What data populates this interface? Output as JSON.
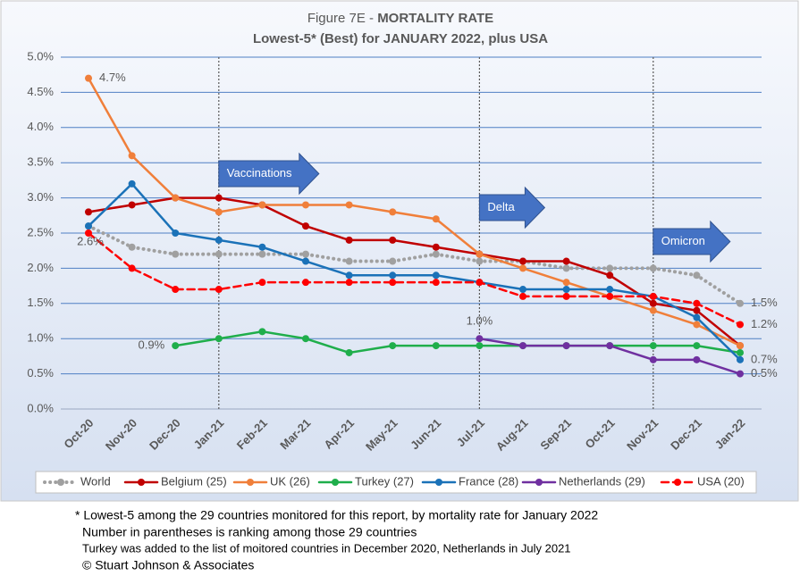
{
  "chart_data": {
    "type": "line",
    "title": {
      "figure": "Figure 7E  -",
      "heading": "MORTALITY RATE"
    },
    "subtitle": "Lowest-5* (Best) for JANUARY 2022, plus USA",
    "categories": [
      "Oct-20",
      "Nov-20",
      "Dec-20",
      "Jan-21",
      "Feb-21",
      "Mar-21",
      "Apr-21",
      "May-21",
      "Jun-21",
      "Jul-21",
      "Aug-21",
      "Sep-21",
      "Oct-21",
      "Nov-21",
      "Dec-21",
      "Jan-22"
    ],
    "ylim": [
      0,
      5
    ],
    "yticks": [
      {
        "value": 0,
        "label": "0.0%"
      },
      {
        "value": 0.5,
        "label": "0.5%"
      },
      {
        "value": 1,
        "label": "1.0%"
      },
      {
        "value": 1.5,
        "label": "1.5%"
      },
      {
        "value": 2,
        "label": "2.0%"
      },
      {
        "value": 2.5,
        "label": "2.5%"
      },
      {
        "value": 3,
        "label": "3.0%"
      },
      {
        "value": 3.5,
        "label": "3.5%"
      },
      {
        "value": 4,
        "label": "4.0%"
      },
      {
        "value": 4.5,
        "label": "4.5%"
      },
      {
        "value": 5,
        "label": "5.0%"
      }
    ],
    "grid": true,
    "series": [
      {
        "name": "World",
        "color": "#a0a0a0",
        "dash": "dotted",
        "values": [
          2.6,
          2.3,
          2.2,
          2.2,
          2.2,
          2.2,
          2.1,
          2.1,
          2.2,
          2.1,
          2.1,
          2.0,
          2.0,
          2.0,
          1.9,
          1.5
        ],
        "value_labels": [
          "2.6%",
          null,
          null,
          null,
          null,
          null,
          null,
          null,
          null,
          null,
          null,
          null,
          null,
          null,
          null,
          "1.5%"
        ]
      },
      {
        "name": "Belgium (25)",
        "color": "#c00000",
        "dash": "solid",
        "values": [
          2.8,
          2.9,
          3.0,
          3.0,
          2.9,
          2.6,
          2.4,
          2.4,
          2.3,
          2.2,
          2.1,
          2.1,
          1.9,
          1.5,
          1.4,
          0.9
        ]
      },
      {
        "name": "UK (26)",
        "color": "#f07f3a",
        "dash": "solid",
        "values": [
          4.7,
          3.6,
          3.0,
          2.8,
          2.9,
          2.9,
          2.9,
          2.8,
          2.7,
          2.2,
          2.0,
          1.8,
          1.6,
          1.4,
          1.2,
          0.9
        ],
        "value_labels": [
          "4.7%",
          null,
          null,
          null,
          null,
          null,
          null,
          null,
          null,
          null,
          null,
          null,
          null,
          null,
          null,
          null
        ]
      },
      {
        "name": "Turkey (27)",
        "color": "#1fae4b",
        "dash": "solid",
        "values": [
          null,
          null,
          0.9,
          1.0,
          1.1,
          1.0,
          0.8,
          0.9,
          0.9,
          0.9,
          0.9,
          0.9,
          0.9,
          0.9,
          0.9,
          0.8
        ],
        "value_labels": [
          null,
          null,
          "0.9%",
          null,
          null,
          null,
          null,
          null,
          null,
          null,
          null,
          null,
          null,
          null,
          null,
          null
        ]
      },
      {
        "name": "France (28)",
        "color": "#1b72b8",
        "dash": "solid",
        "values": [
          2.6,
          3.2,
          2.5,
          2.4,
          2.3,
          2.1,
          1.9,
          1.9,
          1.9,
          1.8,
          1.7,
          1.7,
          1.7,
          1.6,
          1.3,
          0.7
        ],
        "value_labels": [
          null,
          null,
          null,
          null,
          null,
          null,
          null,
          null,
          null,
          null,
          null,
          null,
          null,
          null,
          null,
          "0.7%"
        ]
      },
      {
        "name": "Netherlands (29)",
        "color": "#7030a0",
        "dash": "solid",
        "values": [
          null,
          null,
          null,
          null,
          null,
          null,
          null,
          null,
          null,
          1.0,
          0.9,
          0.9,
          0.9,
          0.7,
          0.7,
          0.5
        ],
        "value_labels": [
          null,
          null,
          null,
          null,
          null,
          null,
          null,
          null,
          null,
          "1.0%",
          null,
          null,
          null,
          null,
          null,
          "0.5%"
        ]
      },
      {
        "name": "USA (20)",
        "color": "#ff0000",
        "dash": "dashed",
        "values": [
          2.5,
          2.0,
          1.7,
          1.7,
          1.8,
          1.8,
          1.8,
          1.8,
          1.8,
          1.8,
          1.6,
          1.6,
          1.6,
          1.6,
          1.5,
          1.2
        ],
        "value_labels": [
          null,
          null,
          null,
          null,
          null,
          null,
          null,
          null,
          null,
          null,
          null,
          null,
          null,
          null,
          null,
          "1.2%"
        ]
      }
    ],
    "annotations": [
      {
        "label": "Vaccinations",
        "at": "Jan-21"
      },
      {
        "label": "Delta",
        "at": "Jul-21"
      },
      {
        "label": "Omicron",
        "at": "Nov-21"
      }
    ],
    "notes": [
      "* Lowest-5 among the 29 countries monitored for this report, by mortality rate for January 2022",
      "Number in parentheses is ranking among those 29 countries",
      "Turkey was added to the list of moitored countries in December 2020, Netherlands in July 2021",
      "© Stuart Johnson & Associates"
    ]
  }
}
